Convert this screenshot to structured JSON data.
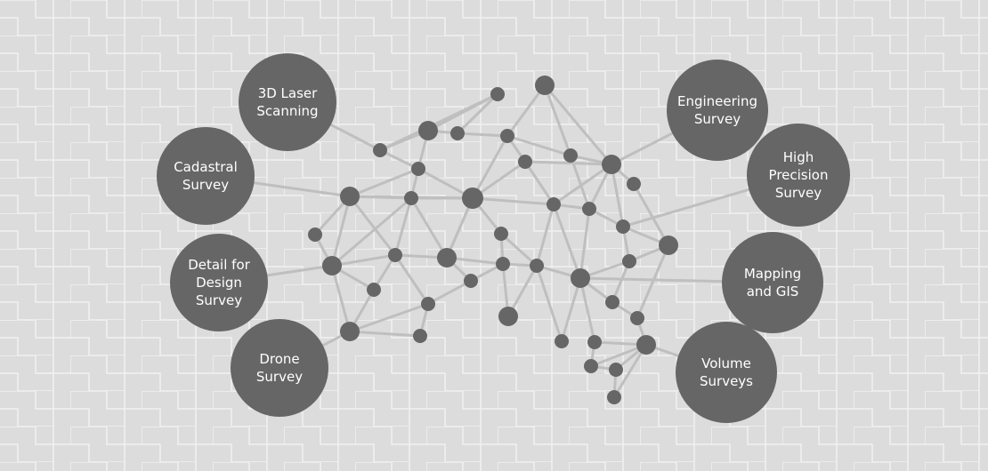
{
  "diagram": {
    "colors": {
      "background": "#dcdcdc",
      "pattern_line": "#f2f2f2",
      "node": "#666666",
      "edge": "#bfbfbf",
      "service_circle": "#666666",
      "service_text": "#ffffff"
    },
    "services": [
      {
        "id": "3d-laser-scanning",
        "lines": [
          "3D Laser",
          "Scanning"
        ]
      },
      {
        "id": "cadastral-survey",
        "lines": [
          "Cadastral",
          "Survey"
        ]
      },
      {
        "id": "detail-for-design-survey",
        "lines": [
          "Detail for",
          "Design",
          "Survey"
        ]
      },
      {
        "id": "drone-survey",
        "lines": [
          "Drone",
          "Survey"
        ]
      },
      {
        "id": "engineering-survey",
        "lines": [
          "Engineering",
          "Survey"
        ]
      },
      {
        "id": "high-precision-survey",
        "lines": [
          "High",
          "Precision",
          "Survey"
        ]
      },
      {
        "id": "mapping-and-gis",
        "lines": [
          "Mapping",
          "and GIS"
        ]
      },
      {
        "id": "volume-surveys",
        "lines": [
          "Volume",
          "Surveys"
        ]
      }
    ]
  }
}
